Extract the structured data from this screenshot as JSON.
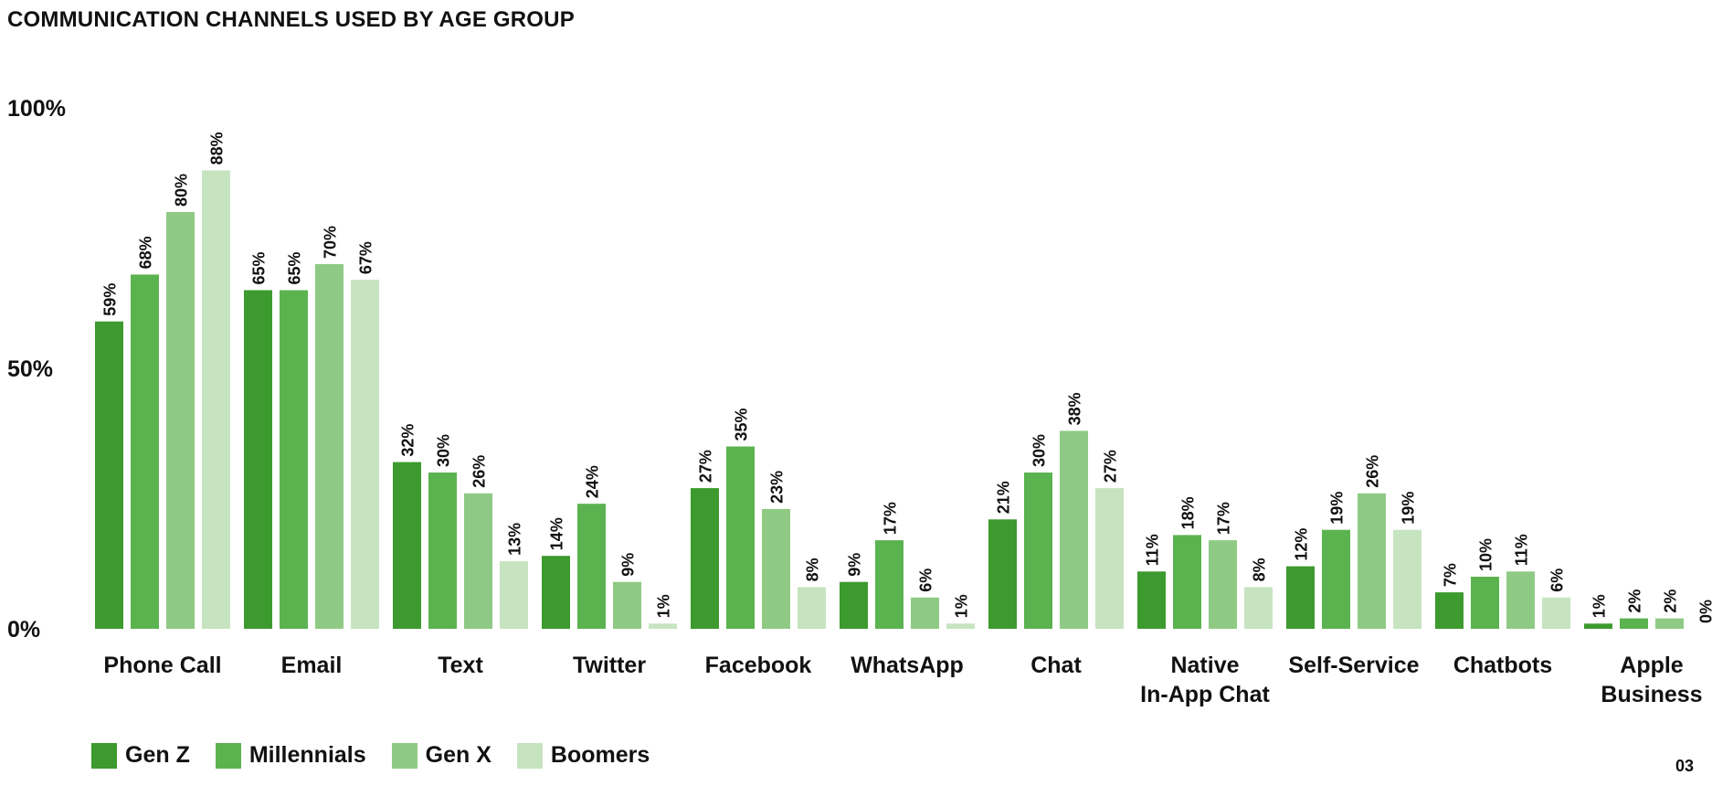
{
  "title": "COMMUNICATION CHANNELS USED BY AGE GROUP",
  "page_number": "03",
  "chart_data": {
    "type": "bar",
    "title": "COMMUNICATION CHANNELS USED BY AGE GROUP",
    "xlabel": "",
    "ylabel": "",
    "ylim": [
      0,
      100
    ],
    "yticks": [
      "0%",
      "50%",
      "100%"
    ],
    "grid": false,
    "legend_position": "bottom-left",
    "categories": [
      [
        "Phone Call"
      ],
      [
        "Email"
      ],
      [
        "Text"
      ],
      [
        "Twitter"
      ],
      [
        "Facebook"
      ],
      [
        "WhatsApp"
      ],
      [
        "Chat"
      ],
      [
        "Native",
        "In-App Chat"
      ],
      [
        "Self-Service"
      ],
      [
        "Chatbots"
      ],
      [
        "Apple",
        "Business"
      ]
    ],
    "series": [
      {
        "name": "Gen Z",
        "color": "#3d9a2e",
        "values": [
          59,
          65,
          32,
          14,
          27,
          9,
          21,
          11,
          12,
          7,
          1
        ]
      },
      {
        "name": "Millennials",
        "color": "#5bb350",
        "values": [
          68,
          65,
          30,
          24,
          35,
          17,
          30,
          18,
          19,
          10,
          2
        ]
      },
      {
        "name": "Gen X",
        "color": "#8fca85",
        "values": [
          80,
          70,
          26,
          9,
          23,
          6,
          38,
          17,
          26,
          11,
          2
        ]
      },
      {
        "name": "Boomers",
        "color": "#c6e4c0",
        "values": [
          88,
          67,
          13,
          1,
          8,
          1,
          27,
          8,
          19,
          6,
          0
        ]
      }
    ],
    "value_suffix": "%"
  }
}
